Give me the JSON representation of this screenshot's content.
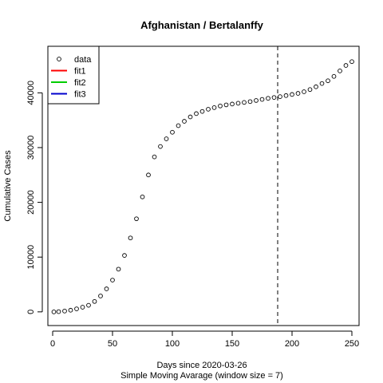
{
  "chart_data": {
    "type": "scatter",
    "title": "Afghanistan / Bertalanffy",
    "xlabel": "Days since 2020-03-26",
    "subtitle": "Simple Moving Avarage (window size = 7)",
    "ylabel": "Cumulative Cases",
    "xlim": [
      -4,
      256
    ],
    "ylim": [
      -2500,
      48500
    ],
    "xticks": [
      0,
      50,
      100,
      150,
      200,
      250
    ],
    "yticks": [
      0,
      10000,
      20000,
      30000,
      40000
    ],
    "vline": 188,
    "grid": false,
    "legend_position": "top-left",
    "legend": [
      {
        "label": "data",
        "kind": "point",
        "color": "#000000"
      },
      {
        "label": "fit1",
        "kind": "line",
        "color": "#ff0000"
      },
      {
        "label": "fit2",
        "kind": "line",
        "color": "#00cd00"
      },
      {
        "label": "fit3",
        "kind": "line",
        "color": "#0000cd"
      }
    ],
    "series": [
      {
        "name": "data",
        "x": [
          1,
          5,
          10,
          15,
          20,
          25,
          30,
          35,
          40,
          45,
          50,
          55,
          60,
          65,
          70,
          75,
          80,
          85,
          90,
          95,
          100,
          105,
          110,
          115,
          120,
          125,
          130,
          135,
          140,
          145,
          150,
          155,
          160,
          165,
          170,
          175,
          180,
          185,
          190,
          195,
          200,
          205,
          210,
          215,
          220,
          225,
          230,
          235,
          240,
          245,
          250
        ],
        "y": [
          0,
          40,
          150,
          300,
          550,
          850,
          1200,
          1900,
          2900,
          4200,
          5800,
          7800,
          10300,
          13500,
          17000,
          21000,
          25000,
          28300,
          30200,
          31600,
          32800,
          34000,
          34800,
          35600,
          36200,
          36600,
          37000,
          37300,
          37600,
          37800,
          37950,
          38100,
          38250,
          38400,
          38600,
          38800,
          39000,
          39150,
          39300,
          39500,
          39700,
          39900,
          40200,
          40600,
          41100,
          41700,
          42200,
          43000,
          44000,
          45000,
          45700
        ]
      }
    ]
  }
}
